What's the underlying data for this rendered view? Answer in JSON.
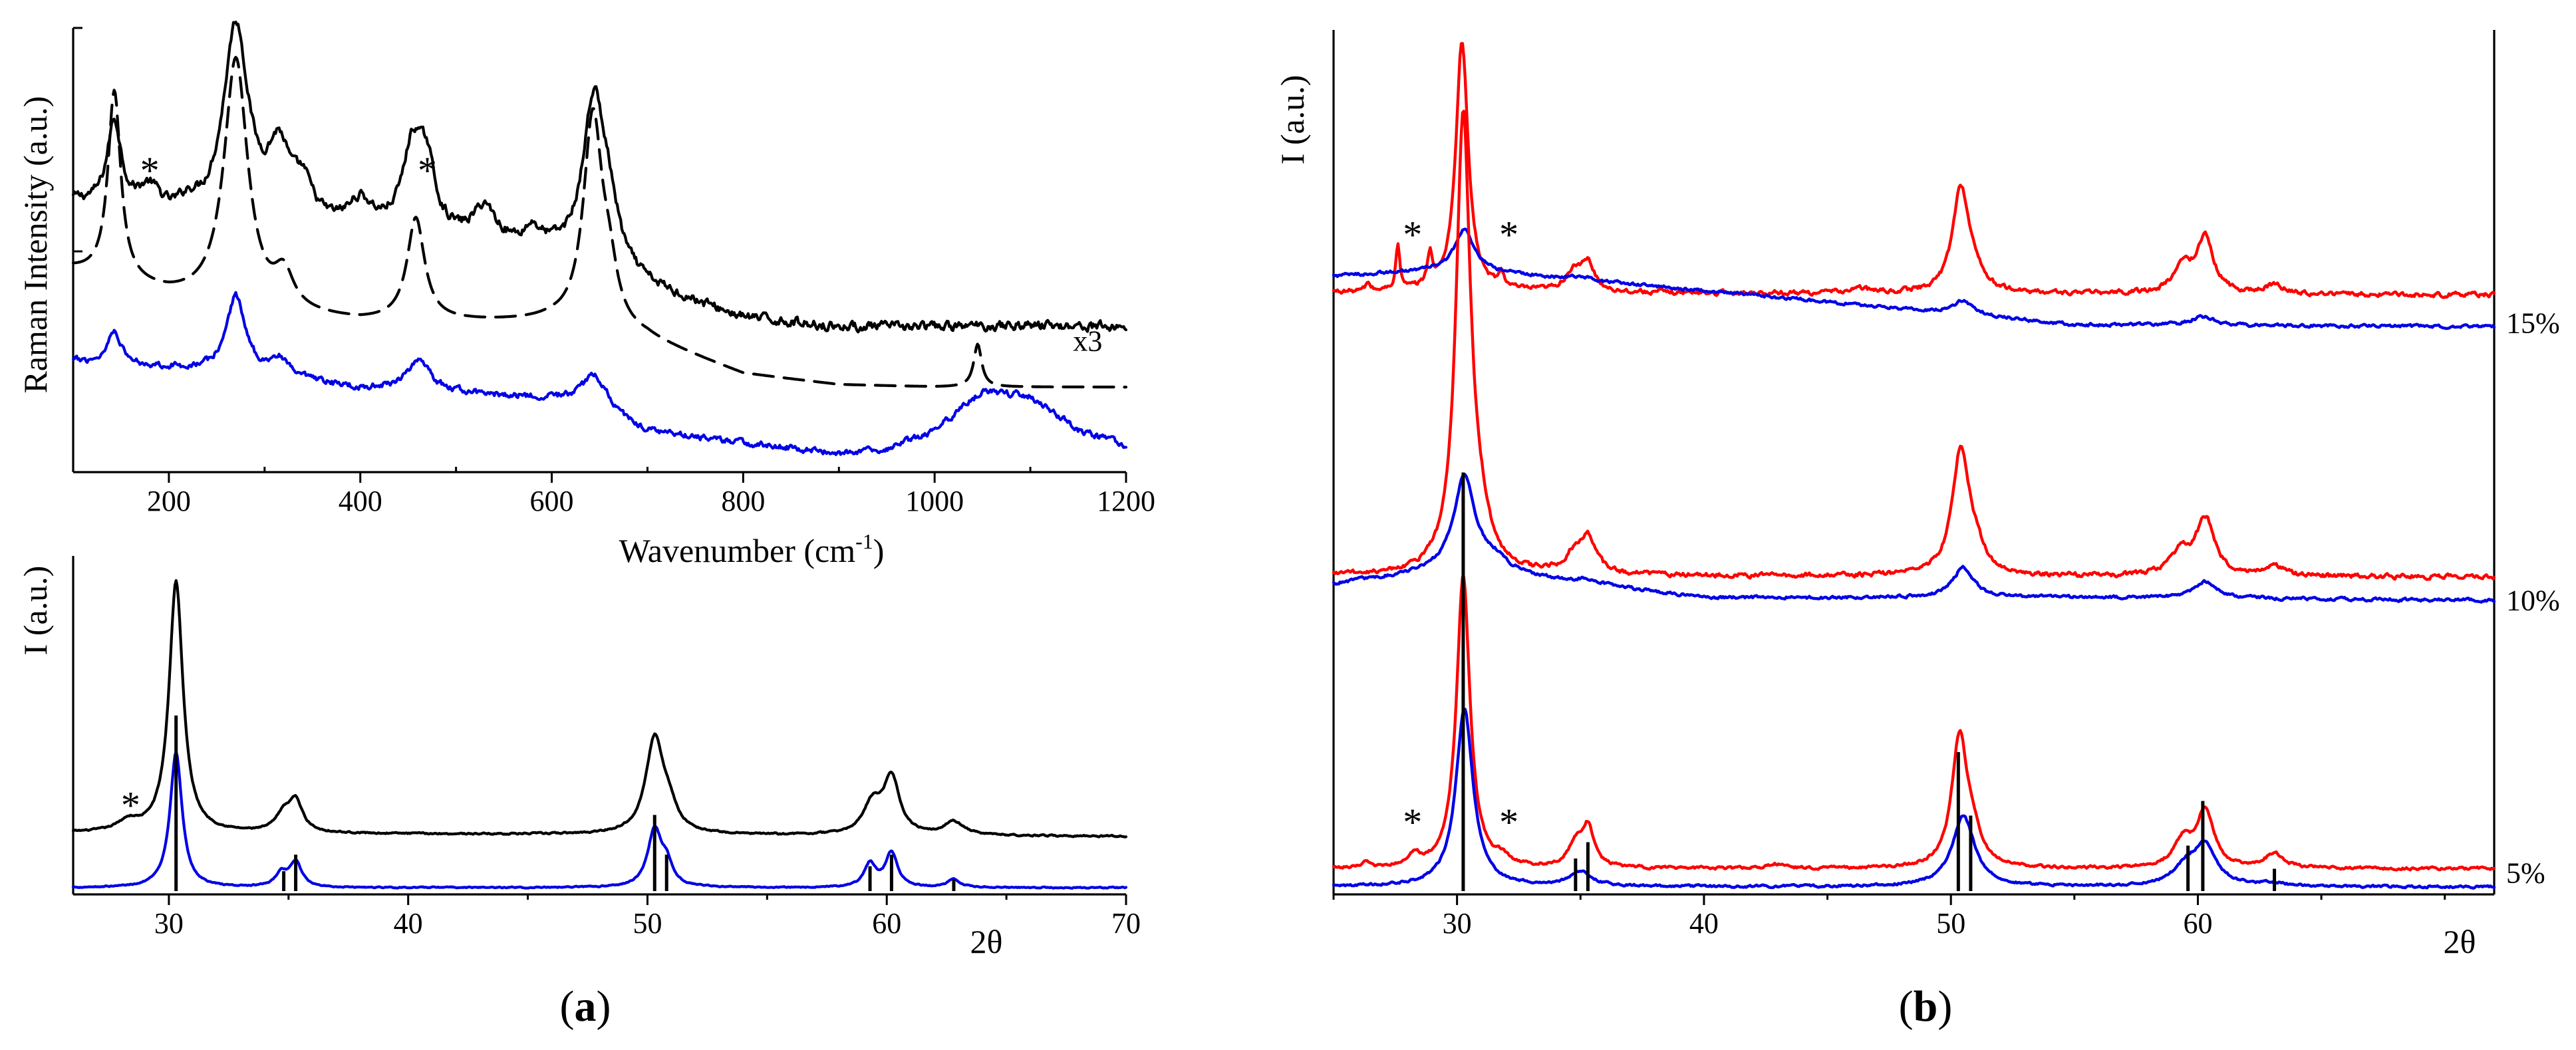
{
  "figure": {
    "panel_a_label": "(a)",
    "panel_b_label": "(b)"
  },
  "chart_data": [
    {
      "id": "a-raman",
      "type": "line",
      "title": "",
      "xlabel": "Wavenumber (cm⁻¹)",
      "ylabel": "Raman Intensity (a.u.)",
      "xlim": [
        100,
        1200
      ],
      "xticks": [
        200,
        400,
        600,
        800,
        1000,
        1200
      ],
      "ylim": [
        0,
        10
      ],
      "annotations": [
        {
          "text": "*",
          "x": 180,
          "y": 6.65
        },
        {
          "text": "*",
          "x": 470,
          "y": 6.65
        },
        {
          "text": "x3",
          "x": 1160,
          "y": 2.75
        }
      ],
      "series": [
        {
          "name": "black (solid)",
          "color": "#000000",
          "dash": "solid",
          "lw": 4.2,
          "baseline": {
            "x": [
              100,
              200,
              300,
              400,
              500,
              600,
              700,
              800,
              900,
              1000,
              1100,
              1200
            ],
            "y": [
              6.2,
              5.7,
              5.6,
              5.5,
              5.3,
              5.0,
              4.2,
              3.5,
              3.3,
              3.3,
              3.35,
              3.3
            ]
          },
          "peaks": [
            [
              143,
              2.0,
              9
            ],
            [
              180,
              0.6,
              15
            ],
            [
              220,
              0.3,
              12
            ],
            [
              270,
              4.6,
              16
            ],
            [
              315,
              1.6,
              14
            ],
            [
              340,
              0.8,
              12
            ],
            [
              400,
              0.6,
              15
            ],
            [
              455,
              2.0,
              13
            ],
            [
              470,
              1.3,
              10
            ],
            [
              530,
              0.8,
              14
            ],
            [
              580,
              0.4,
              10
            ],
            [
              644,
              3.8,
              14
            ],
            [
              660,
              1.0,
              12
            ]
          ],
          "noise": 0.12
        },
        {
          "name": "black (dashed)",
          "color": "#000000",
          "dash": "dashed",
          "lw": 4.2,
          "baseline": {
            "x": [
              100,
              200,
              300,
              400,
              500,
              600,
              700,
              800,
              900,
              1000,
              1100,
              1200
            ],
            "y": [
              4.6,
              4.0,
              3.6,
              3.4,
              3.4,
              3.4,
              3.0,
              2.2,
              1.95,
              1.9,
              1.9,
              1.9
            ]
          },
          "peaks": [
            [
              143,
              4.4,
              8
            ],
            [
              270,
              5.8,
              15
            ],
            [
              320,
              0.8,
              12
            ],
            [
              458,
              2.4,
              11
            ],
            [
              643,
              4.9,
              12
            ],
            [
              660,
              1.0,
              10
            ],
            [
              1045,
              1.0,
              5
            ]
          ],
          "noise": 0.0
        },
        {
          "name": "blue",
          "color": "#0000e6",
          "dash": "solid",
          "lw": 4.2,
          "baseline": {
            "x": [
              100,
              200,
              300,
              400,
              500,
              600,
              700,
              800,
              900,
              950,
              1000,
              1050,
              1100,
              1150,
              1200
            ],
            "y": [
              2.5,
              2.35,
              2.15,
              1.85,
              1.75,
              1.6,
              0.85,
              0.6,
              0.35,
              0.45,
              0.9,
              1.8,
              1.7,
              0.9,
              0.55
            ]
          },
          "peaks": [
            [
              143,
              0.8,
              8
            ],
            [
              270,
              1.8,
              12
            ],
            [
              315,
              0.4,
              12
            ],
            [
              460,
              0.7,
              16
            ],
            [
              645,
              0.9,
              18
            ]
          ],
          "noise": 0.08
        }
      ]
    },
    {
      "id": "a-xrd",
      "type": "line",
      "title": "",
      "xlabel": "2θ",
      "ylabel": "I (a.u.)",
      "xlim": [
        26,
        70
      ],
      "xticks": [
        30,
        40,
        50,
        60,
        70
      ],
      "ylim": [
        0,
        10
      ],
      "annotations": [
        {
          "text": "*",
          "x": 28.4,
          "y": 2.2
        }
      ],
      "series": [
        {
          "name": "black",
          "color": "#000000",
          "lw": 4.2,
          "baseline": {
            "x": [
              26,
              70
            ],
            "y": [
              1.75,
              1.65
            ]
          },
          "peaks": [
            [
              28.3,
              0.3,
              0.5
            ],
            [
              30.3,
              7.6,
              0.35
            ],
            [
              34.8,
              0.5,
              0.4
            ],
            [
              35.3,
              0.9,
              0.35
            ],
            [
              50.3,
              2.85,
              0.45
            ],
            [
              50.9,
              0.6,
              0.4
            ],
            [
              59.4,
              0.9,
              0.45
            ],
            [
              60.2,
              1.7,
              0.4
            ],
            [
              62.8,
              0.4,
              0.5
            ]
          ],
          "noise": 0.025
        },
        {
          "name": "blue",
          "color": "#0000e6",
          "lw": 4.2,
          "baseline": {
            "x": [
              26,
              70
            ],
            "y": [
              0.1,
              0.1
            ]
          },
          "peaks": [
            [
              30.3,
              4.1,
              0.3
            ],
            [
              34.7,
              0.4,
              0.3
            ],
            [
              35.3,
              0.75,
              0.3
            ],
            [
              50.3,
              1.7,
              0.35
            ],
            [
              50.8,
              0.6,
              0.3
            ],
            [
              59.3,
              0.7,
              0.3
            ],
            [
              60.2,
              1.05,
              0.3
            ],
            [
              62.8,
              0.25,
              0.3
            ]
          ],
          "noise": 0.02
        },
        {
          "name": "reference lines",
          "color": "#000000",
          "type": "sticks",
          "x": [
            30.3,
            34.8,
            35.3,
            50.3,
            50.8,
            59.3,
            60.2,
            62.8
          ],
          "y": [
            5.3,
            0.6,
            1.1,
            2.3,
            1.1,
            0.75,
            1.1,
            0.35
          ]
        }
      ]
    },
    {
      "id": "b-xrd",
      "type": "line",
      "title": "",
      "xlabel": "2θ",
      "ylabel": "I (a.u.)",
      "xlim": [
        25,
        72
      ],
      "xticks": [
        30,
        40,
        50,
        60
      ],
      "ylim": [
        0,
        100
      ],
      "right_labels": [
        "15%",
        "10%",
        "5%"
      ],
      "right_label_y": [
        66.3,
        34.0,
        2.2
      ],
      "annotations": [
        {
          "text": "*",
          "x": 28.2,
          "y": 75.0
        },
        {
          "text": "*",
          "x": 32.1,
          "y": 75.0
        },
        {
          "text": "*",
          "x": 28.2,
          "y": 6.5
        },
        {
          "text": "*",
          "x": 32.1,
          "y": 6.5
        }
      ],
      "series": [
        {
          "name": "15% red",
          "color": "#ff0000",
          "lw": 4.4,
          "baseline": {
            "x": [
              25,
              72
            ],
            "y": [
              69.8,
              69.5
            ]
          },
          "peaks": [
            [
              26.4,
              0.9,
              0.12
            ],
            [
              27.6,
              5.2,
              0.1
            ],
            [
              28.9,
              3.7,
              0.12
            ],
            [
              30.2,
              29.3,
              0.3
            ],
            [
              31.8,
              1.6,
              0.15
            ],
            [
              34.7,
              2.2,
              0.4
            ],
            [
              35.3,
              3.2,
              0.32
            ],
            [
              46.3,
              0.5,
              0.5
            ],
            [
              50.4,
              12.3,
              0.4
            ],
            [
              51.0,
              1.5,
              0.4
            ],
            [
              59.4,
              3.1,
              0.45
            ],
            [
              60.3,
              6.4,
              0.4
            ],
            [
              63.1,
              1.0,
              0.45
            ]
          ],
          "noise": 0.3
        },
        {
          "name": "15% blue",
          "color": "#0000e6",
          "lw": 4.4,
          "baseline": {
            "x": [
              25,
              30,
              40,
              55,
              72
            ],
            "y": [
              71.7,
              72.5,
              70.0,
              66.0,
              65.8
            ]
          },
          "peaks": [
            [
              30.3,
              4.7,
              0.45
            ],
            [
              35.0,
              0.4,
              0.5
            ],
            [
              50.5,
              1.6,
              0.55
            ],
            [
              60.2,
              1.0,
              0.6
            ]
          ],
          "noise": 0.2
        },
        {
          "name": "10% red",
          "color": "#ff0000",
          "lw": 4.4,
          "baseline": {
            "x": [
              25,
              72
            ],
            "y": [
              36.8,
              36.6
            ]
          },
          "peaks": [
            [
              30.25,
              52.8,
              0.35
            ],
            [
              30.9,
              4.0,
              0.5
            ],
            [
              34.7,
              1.8,
              0.4
            ],
            [
              35.3,
              4.1,
              0.4
            ],
            [
              50.4,
              14.5,
              0.42
            ],
            [
              51.0,
              2.0,
              0.45
            ],
            [
              59.3,
              2.5,
              0.5
            ],
            [
              60.3,
              6.6,
              0.45
            ],
            [
              63.1,
              1.2,
              0.45
            ]
          ],
          "noise": 0.3
        },
        {
          "name": "10% blue",
          "color": "#0000e6",
          "lw": 4.4,
          "baseline": {
            "x": [
              25,
              30,
              40,
              55,
              72
            ],
            "y": [
              35.8,
              37.5,
              34.2,
              34.2,
              33.9
            ]
          },
          "peaks": [
            [
              30.3,
              10.9,
              0.5
            ],
            [
              31.5,
              1.5,
              0.7
            ],
            [
              35.3,
              0.6,
              0.5
            ],
            [
              50.5,
              3.5,
              0.5
            ],
            [
              60.3,
              2.0,
              0.6
            ]
          ],
          "noise": 0.2
        },
        {
          "name": "5% red",
          "color": "#ff0000",
          "lw": 4.4,
          "baseline": {
            "x": [
              25,
              72
            ],
            "y": [
              2.6,
              2.6
            ]
          },
          "peaks": [
            [
              26.3,
              0.6,
              0.15
            ],
            [
              28.3,
              1.3,
              0.25
            ],
            [
              30.25,
              34.0,
              0.33
            ],
            [
              31.8,
              0.8,
              0.3
            ],
            [
              34.8,
              2.5,
              0.35
            ],
            [
              35.3,
              4.6,
              0.3
            ],
            [
              42.9,
              0.5,
              0.3
            ],
            [
              50.35,
              15.1,
              0.38
            ],
            [
              50.9,
              3.0,
              0.4
            ],
            [
              59.4,
              3.0,
              0.45
            ],
            [
              60.3,
              6.6,
              0.42
            ],
            [
              63.1,
              1.7,
              0.45
            ]
          ],
          "noise": 0.18
        },
        {
          "name": "5% blue",
          "color": "#0000e6",
          "lw": 4.4,
          "baseline": {
            "x": [
              25,
              72
            ],
            "y": [
              0.5,
              0.5
            ]
          },
          "peaks": [
            [
              30.3,
              20.7,
              0.42
            ],
            [
              35.0,
              1.6,
              0.55
            ],
            [
              50.5,
              8.2,
              0.55
            ],
            [
              59.5,
              2.0,
              0.6
            ],
            [
              60.3,
              4.6,
              0.55
            ],
            [
              63.0,
              0.4,
              0.5
            ]
          ],
          "noise": 0.15
        },
        {
          "name": "reference lines",
          "color": "#000000",
          "type": "sticks",
          "x": [
            30.25,
            34.8,
            35.3,
            50.3,
            50.8,
            59.6,
            60.2,
            63.1
          ],
          "y": [
            48.8,
            3.8,
            5.7,
            16.2,
            8.8,
            5.3,
            10.5,
            2.6
          ]
        }
      ]
    }
  ]
}
